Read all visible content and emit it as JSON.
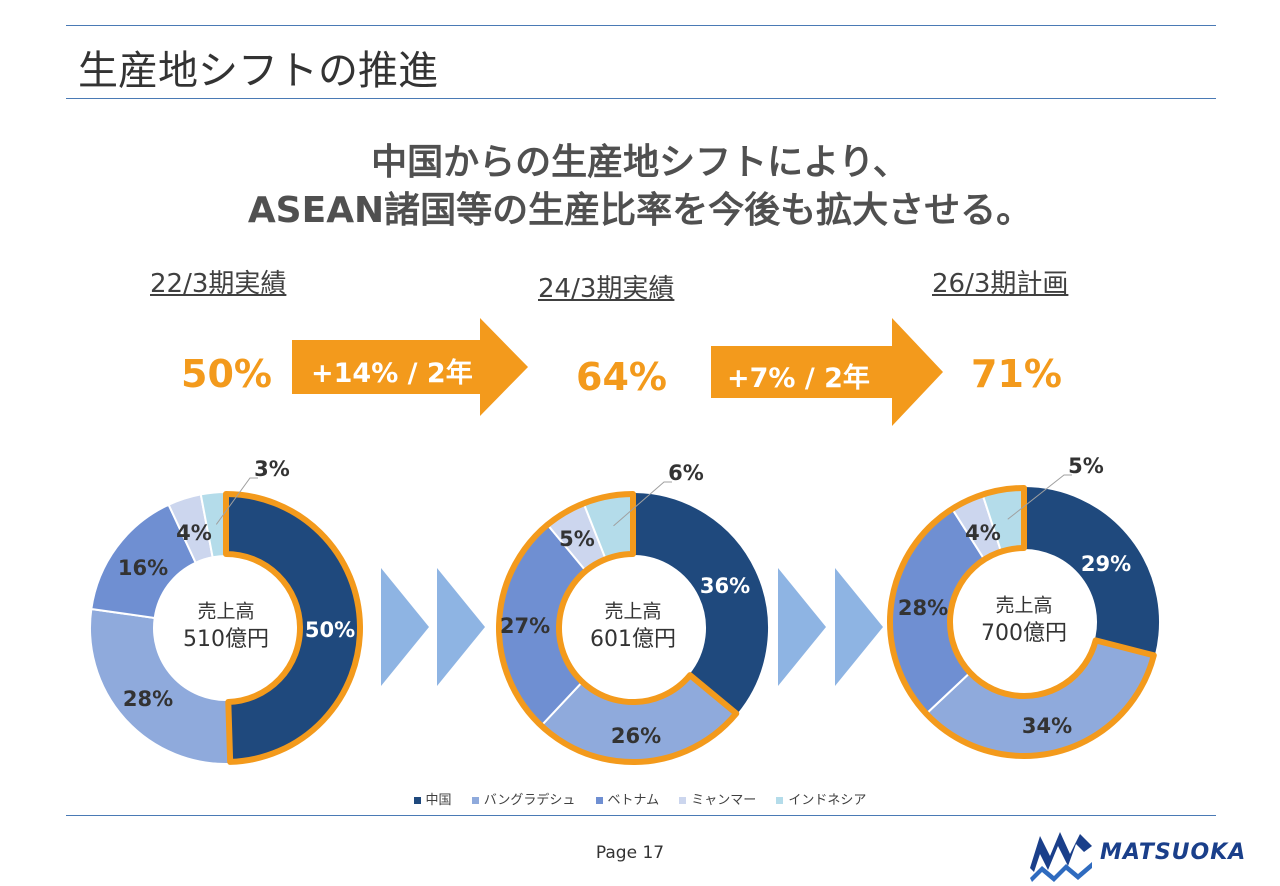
{
  "slide_title": "生産地シフトの推進",
  "headline": {
    "line1": "中国からの生産地シフトにより、",
    "line2": "ASEAN諸国等の生産比率を今後も拡大させる。"
  },
  "periods": [
    {
      "label": "22/3期実績",
      "ratio": "50%"
    },
    {
      "label": "24/3期実績",
      "ratio": "64%"
    },
    {
      "label": "26/3期計画",
      "ratio": "71%"
    }
  ],
  "arrows": [
    {
      "label": "+14% / 2年"
    },
    {
      "label": "+7% / 2年"
    }
  ],
  "colors": {
    "accent": "#f39a1c",
    "china": "#1f497d",
    "bangladesh": "#8faadc",
    "vietnam": "#6f8fd2",
    "myanmar": "#ccd6ee",
    "indonesia": "#b4dcea",
    "chevron": "#8eb4e3",
    "logo": "#1a3f8a"
  },
  "chart_data": [
    {
      "type": "pie",
      "title": "22/3期実績",
      "center_label_1": "売上高",
      "center_label_2": "510億円",
      "categories": [
        "中国",
        "バングラデシュ",
        "ベトナム",
        "ミャンマー",
        "インドネシア"
      ],
      "values": [
        50,
        28,
        16,
        4,
        3
      ],
      "labels": [
        "50%",
        "28%",
        "16%",
        "4%",
        "3%"
      ]
    },
    {
      "type": "pie",
      "title": "24/3期実績",
      "center_label_1": "売上高",
      "center_label_2": "601億円",
      "categories": [
        "中国",
        "バングラデシュ",
        "ベトナム",
        "ミャンマー",
        "インドネシア"
      ],
      "values": [
        36,
        26,
        27,
        5,
        6
      ],
      "labels": [
        "36%",
        "26%",
        "27%",
        "5%",
        "6%"
      ]
    },
    {
      "type": "pie",
      "title": "26/3期計画",
      "center_label_1": "売上高",
      "center_label_2": "700億円",
      "categories": [
        "中国",
        "バングラデシュ",
        "ベトナム",
        "ミャンマー",
        "インドネシア"
      ],
      "values": [
        29,
        34,
        28,
        4,
        5
      ],
      "labels": [
        "29%",
        "34%",
        "28%",
        "4%",
        "5%"
      ]
    }
  ],
  "legend": [
    "中国",
    "バングラデシュ",
    "ベトナム",
    "ミャンマー",
    "インドネシア"
  ],
  "footer": {
    "page": "Page 17",
    "logo_text": "MATSUOKA"
  }
}
